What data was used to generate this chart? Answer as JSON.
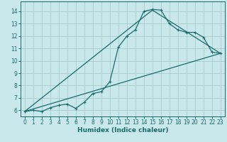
{
  "title": "",
  "xlabel": "Humidex (Indice chaleur)",
  "ylabel": "",
  "bg_color": "#c8e8ec",
  "grid_color": "#aacccc",
  "line_color": "#1a6b6b",
  "xlim": [
    -0.5,
    23.5
  ],
  "ylim": [
    5.5,
    14.8
  ],
  "xticks": [
    0,
    1,
    2,
    3,
    4,
    5,
    6,
    7,
    8,
    9,
    10,
    11,
    12,
    13,
    14,
    15,
    16,
    17,
    18,
    19,
    20,
    21,
    22,
    23
  ],
  "yticks": [
    6,
    7,
    8,
    9,
    10,
    11,
    12,
    13,
    14
  ],
  "curve1_x": [
    0,
    1,
    2,
    3,
    4,
    5,
    6,
    7,
    8,
    9,
    10,
    11,
    12,
    13,
    14,
    15,
    16,
    17,
    18,
    19,
    20,
    21,
    22,
    23
  ],
  "curve1_y": [
    5.9,
    6.0,
    5.9,
    6.2,
    6.4,
    6.5,
    6.15,
    6.65,
    7.35,
    7.5,
    8.3,
    11.1,
    12.0,
    12.5,
    14.0,
    14.15,
    14.1,
    13.0,
    12.5,
    12.3,
    12.3,
    11.9,
    10.7,
    10.6
  ],
  "line1_x": [
    0,
    23
  ],
  "line1_y": [
    5.9,
    10.6
  ],
  "line2_x": [
    0,
    15,
    23
  ],
  "line2_y": [
    5.9,
    14.1,
    10.6
  ]
}
